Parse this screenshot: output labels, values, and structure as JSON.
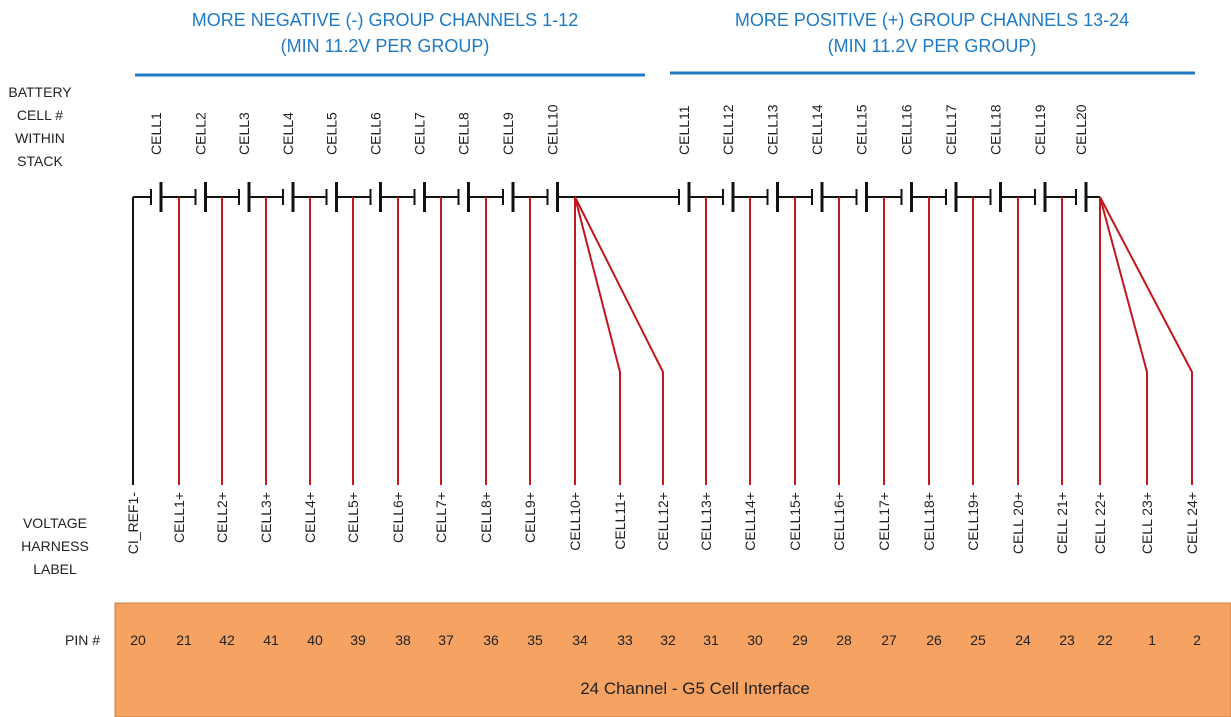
{
  "groups": [
    {
      "title": "MORE NEGATIVE (-) GROUP CHANNELS 1-12",
      "subtitle": "(MIN 11.2V PER GROUP)"
    },
    {
      "title": "MORE POSITIVE (+) GROUP CHANNELS 13-24",
      "subtitle": "(MIN 11.2V PER GROUP)"
    }
  ],
  "row_labels": {
    "battery_cell": [
      "BATTERY",
      "CELL #",
      "WITHIN",
      "STACK"
    ],
    "voltage_harness": [
      "VOLTAGE",
      "HARNESS",
      "LABEL"
    ],
    "pin": "PIN #"
  },
  "cells": [
    "CELL1",
    "CELL2",
    "CELL3",
    "CELL4",
    "CELL5",
    "CELL6",
    "CELL7",
    "CELL8",
    "CELL9",
    "CELL10",
    "CELL11",
    "CELL12",
    "CELL13",
    "CELL14",
    "CELL15",
    "CELL16",
    "CELL17",
    "CELL18",
    "CELL19",
    "CELL20"
  ],
  "harness": [
    {
      "label": "CI_REF1-",
      "pin": 20
    },
    {
      "label": "CELL1+",
      "pin": 21
    },
    {
      "label": "CELL2+",
      "pin": 42
    },
    {
      "label": "CELL3+",
      "pin": 41
    },
    {
      "label": "CELL4+",
      "pin": 40
    },
    {
      "label": "CELL5+",
      "pin": 39
    },
    {
      "label": "CELL6+",
      "pin": 38
    },
    {
      "label": "CELL7+",
      "pin": 37
    },
    {
      "label": "CELL8+",
      "pin": 36
    },
    {
      "label": "CELL9+",
      "pin": 35
    },
    {
      "label": "CELL10+",
      "pin": 34
    },
    {
      "label": "CELL11+",
      "pin": 33
    },
    {
      "label": "CELL12+",
      "pin": 32
    },
    {
      "label": "CELL13+",
      "pin": 31
    },
    {
      "label": "CELL14+",
      "pin": 30
    },
    {
      "label": "CELL15+",
      "pin": 29
    },
    {
      "label": "CELL16+",
      "pin": 28
    },
    {
      "label": "CELL17+",
      "pin": 27
    },
    {
      "label": "CELL18+",
      "pin": 26
    },
    {
      "label": "CELL19+",
      "pin": 25
    },
    {
      "label": "CELL 20+",
      "pin": 24
    },
    {
      "label": "CELL 21+",
      "pin": 23
    },
    {
      "label": "CELL 22+",
      "pin": 22
    },
    {
      "label": "CELL 23+",
      "pin": 1
    },
    {
      "label": "CELL 24+",
      "pin": 2
    }
  ],
  "interface_label": "24 Channel - G5 Cell Interface"
}
